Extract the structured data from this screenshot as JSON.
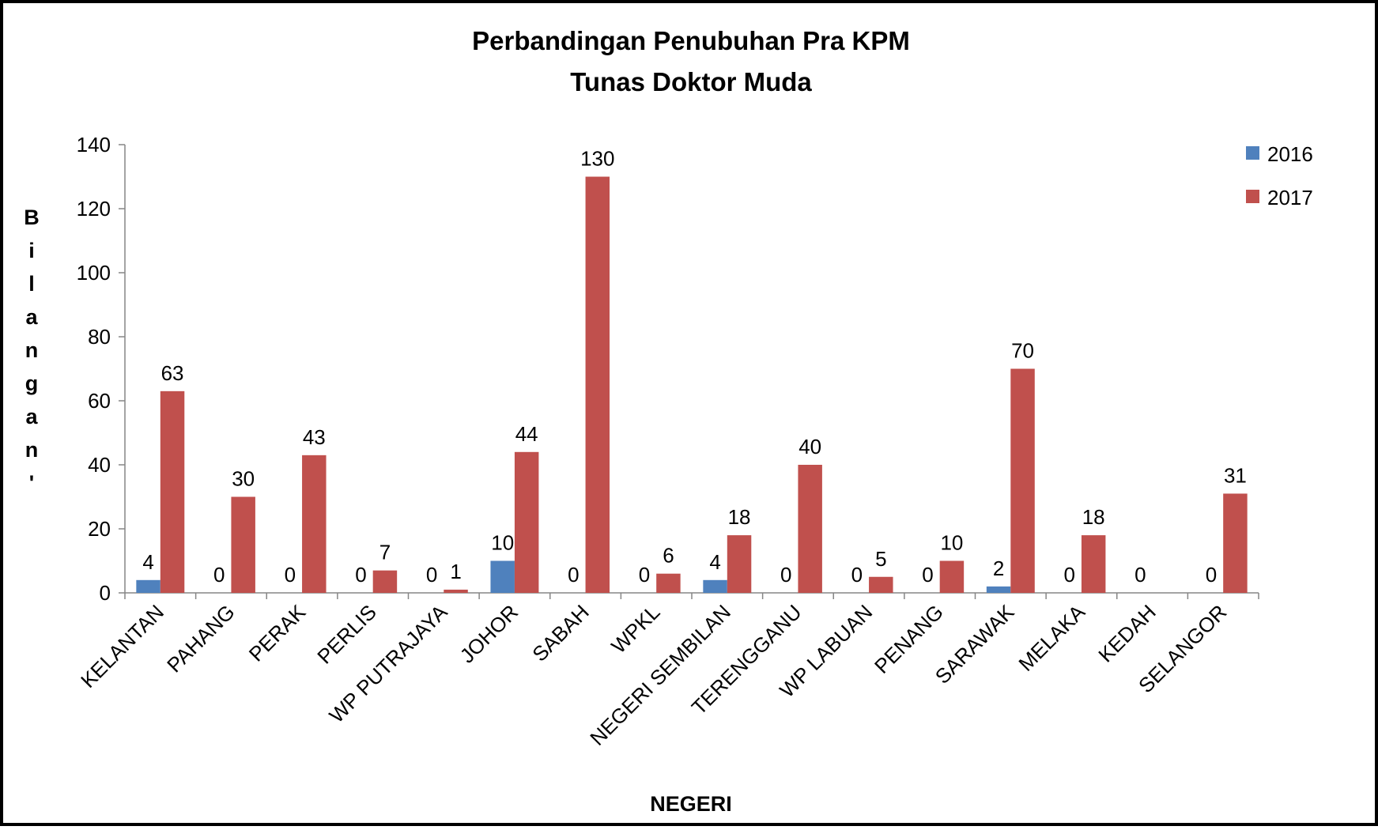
{
  "chart_data": {
    "type": "bar",
    "title": [
      "Perbandingan Penubuhan Pra KPM",
      "Tunas Doktor Muda"
    ],
    "x_label": "NEGERI",
    "y_label": "Bilangan'",
    "categories": [
      "KELANTAN",
      "PAHANG",
      "PERAK",
      "PERLIS",
      "WP PUTRAJAYA",
      "JOHOR",
      "SABAH",
      "WPKL",
      "NEGERI SEMBILAN",
      "TERENGGANU",
      "WP LABUAN",
      "PENANG",
      "SARAWAK",
      "MELAKA",
      "KEDAH",
      "SELANGOR"
    ],
    "series": [
      {
        "name": "2016",
        "color": "#4f81bd",
        "values": [
          4,
          0,
          0,
          0,
          0,
          10,
          0,
          0,
          4,
          0,
          0,
          0,
          2,
          0,
          0,
          0
        ]
      },
      {
        "name": "2017",
        "color": "#c0504d",
        "values": [
          63,
          30,
          43,
          7,
          1,
          44,
          130,
          6,
          18,
          40,
          5,
          10,
          70,
          18,
          null,
          31
        ]
      }
    ],
    "ylim": [
      0,
      140
    ],
    "yticks": [
      0,
      20,
      40,
      60,
      80,
      100,
      120,
      140
    ],
    "grid": false,
    "legend": "top-right"
  }
}
